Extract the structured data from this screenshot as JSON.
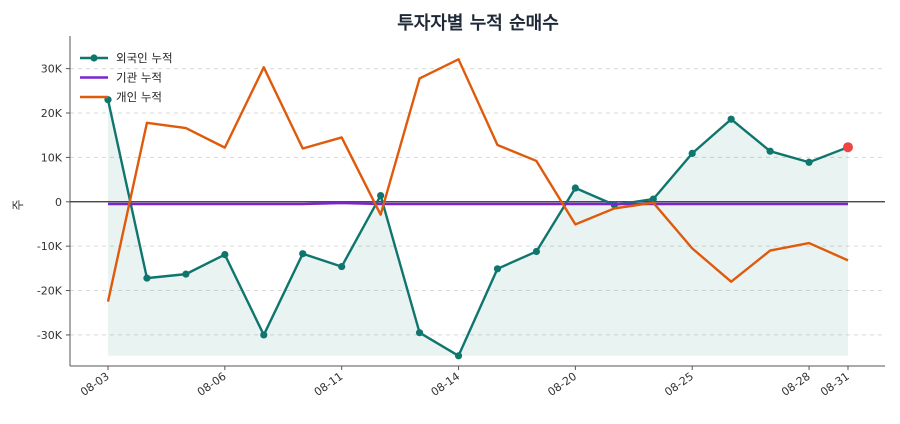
{
  "chart_data": {
    "type": "line",
    "title": "투자자별 누적 순매수",
    "xlabel": "",
    "ylabel": "주",
    "ylim": [
      -37000,
      36000
    ],
    "yticks": [
      -30000,
      -20000,
      -10000,
      0,
      10000,
      20000,
      30000
    ],
    "ytick_labels": [
      "-30K",
      "-20K",
      "-10K",
      "0",
      "10K",
      "20K",
      "30K"
    ],
    "x_tick_labels": [
      "08-03",
      "08-06",
      "08-11",
      "08-14",
      "08-20",
      "08-25",
      "08-28",
      "08-31"
    ],
    "x_tick_positions": [
      0,
      3,
      6,
      9,
      12,
      15,
      18,
      19
    ],
    "x": [
      "08-03",
      "08-04",
      "08-05",
      "08-06",
      "08-07",
      "08-10",
      "08-11",
      "08-12",
      "08-13",
      "08-14",
      "08-17",
      "08-18",
      "08-20",
      "08-21",
      "08-24",
      "08-25",
      "08-26",
      "08-27",
      "08-28",
      "08-31"
    ],
    "grid": "horizontal dashed",
    "legend_position": "top-left",
    "series": [
      {
        "name": "외국인 누적",
        "color": "#0f766e",
        "markers": true,
        "fill": true,
        "values": [
          23000,
          -17200,
          -16300,
          -11900,
          -30000,
          -11700,
          -14600,
          1400,
          -29500,
          -34700,
          -15100,
          -11200,
          3100,
          -700,
          600,
          10900,
          18600,
          11400,
          8900,
          12300
        ]
      },
      {
        "name": "기관 누적",
        "color": "#7e22ce",
        "markers": false,
        "fill": false,
        "values": [
          -500,
          -500,
          -500,
          -500,
          -500,
          -500,
          -300,
          -500,
          -500,
          -500,
          -500,
          -500,
          -500,
          -500,
          -500,
          -500,
          -500,
          -500,
          -500,
          -500
        ]
      },
      {
        "name": "개인 누적",
        "color": "#e05a0c",
        "markers": false,
        "fill": false,
        "values": [
          -22500,
          17800,
          16600,
          12200,
          30300,
          12000,
          14500,
          -2900,
          27800,
          32100,
          12800,
          9200,
          -5100,
          -1500,
          -200,
          -10500,
          -18000,
          -11000,
          -9300,
          -13200
        ]
      }
    ],
    "highlight_last_point_color": "#ef4444",
    "zero_line_color": "#333333"
  }
}
